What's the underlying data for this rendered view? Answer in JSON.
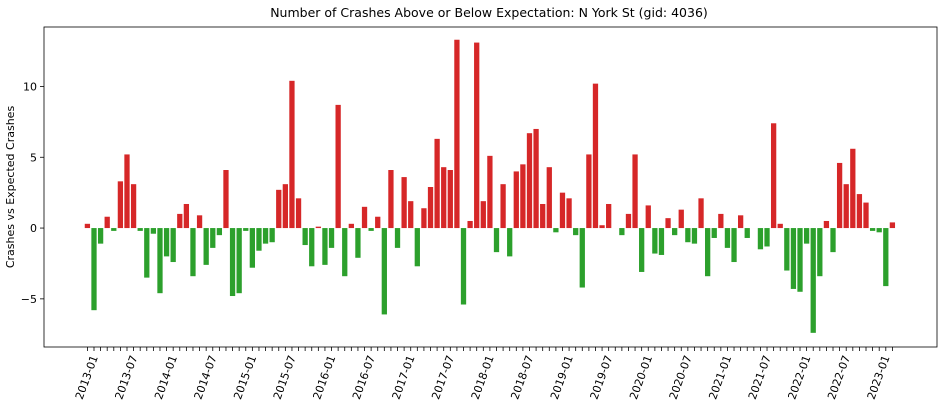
{
  "chart_data": {
    "type": "bar",
    "title": "Number of Crashes Above or Below Expectation: N York St (gid: 4036)",
    "xlabel": "",
    "ylabel": "Crashes vs Expected Crashes",
    "ylim": [
      -8.4,
      14.2
    ],
    "yticks": [
      -5,
      0,
      5,
      10
    ],
    "xtick_labels": [
      "2013-01",
      "2013-07",
      "2014-01",
      "2014-07",
      "2015-01",
      "2015-07",
      "2016-01",
      "2016-07",
      "2017-01",
      "2017-07",
      "2018-01",
      "2018-07",
      "2019-01",
      "2019-07",
      "2020-01",
      "2020-07",
      "2021-01",
      "2021-07",
      "2022-01",
      "2022-07",
      "2023-01"
    ],
    "start_month": "2012-12",
    "grid": false,
    "colors": {
      "positive": "#d62728",
      "negative": "#2ca02c"
    },
    "values": [
      0.3,
      -5.8,
      -1.1,
      0.8,
      -0.2,
      3.3,
      5.2,
      3.1,
      -0.2,
      -3.5,
      -0.4,
      -4.6,
      -2.0,
      -2.4,
      1.0,
      1.7,
      -3.4,
      0.9,
      -2.6,
      -1.4,
      -0.5,
      4.1,
      -4.8,
      -4.6,
      -0.2,
      -2.8,
      -1.6,
      -1.1,
      -1.0,
      2.7,
      3.1,
      10.4,
      2.1,
      -1.2,
      -2.7,
      0.1,
      -2.6,
      -1.4,
      8.7,
      -3.4,
      0.3,
      -2.1,
      1.5,
      -0.2,
      0.8,
      -6.1,
      4.1,
      -1.4,
      3.6,
      1.9,
      -2.7,
      1.4,
      2.9,
      6.3,
      4.3,
      4.1,
      13.3,
      -5.4,
      0.5,
      13.1,
      1.9,
      5.1,
      -1.7,
      3.1,
      -2.0,
      4.0,
      4.5,
      6.7,
      7.0,
      1.7,
      4.3,
      -0.3,
      2.5,
      2.1,
      -0.5,
      -4.2,
      5.2,
      10.2,
      0.2,
      1.7,
      0.0,
      -0.5,
      1.0,
      5.2,
      -3.1,
      1.6,
      -1.8,
      -1.9,
      0.7,
      -0.5,
      1.3,
      -1.0,
      -1.1,
      2.1,
      -3.4,
      -0.7,
      1.0,
      -1.4,
      -2.4,
      0.9,
      -0.7,
      0.0,
      -1.5,
      -1.3,
      7.4,
      0.3,
      -3.0,
      -4.3,
      -4.5,
      -1.1,
      -7.4,
      -3.4,
      0.5,
      -1.7,
      4.6,
      3.1,
      5.6,
      2.4,
      1.8,
      -0.2,
      -0.3,
      -4.1,
      0.4
    ]
  }
}
